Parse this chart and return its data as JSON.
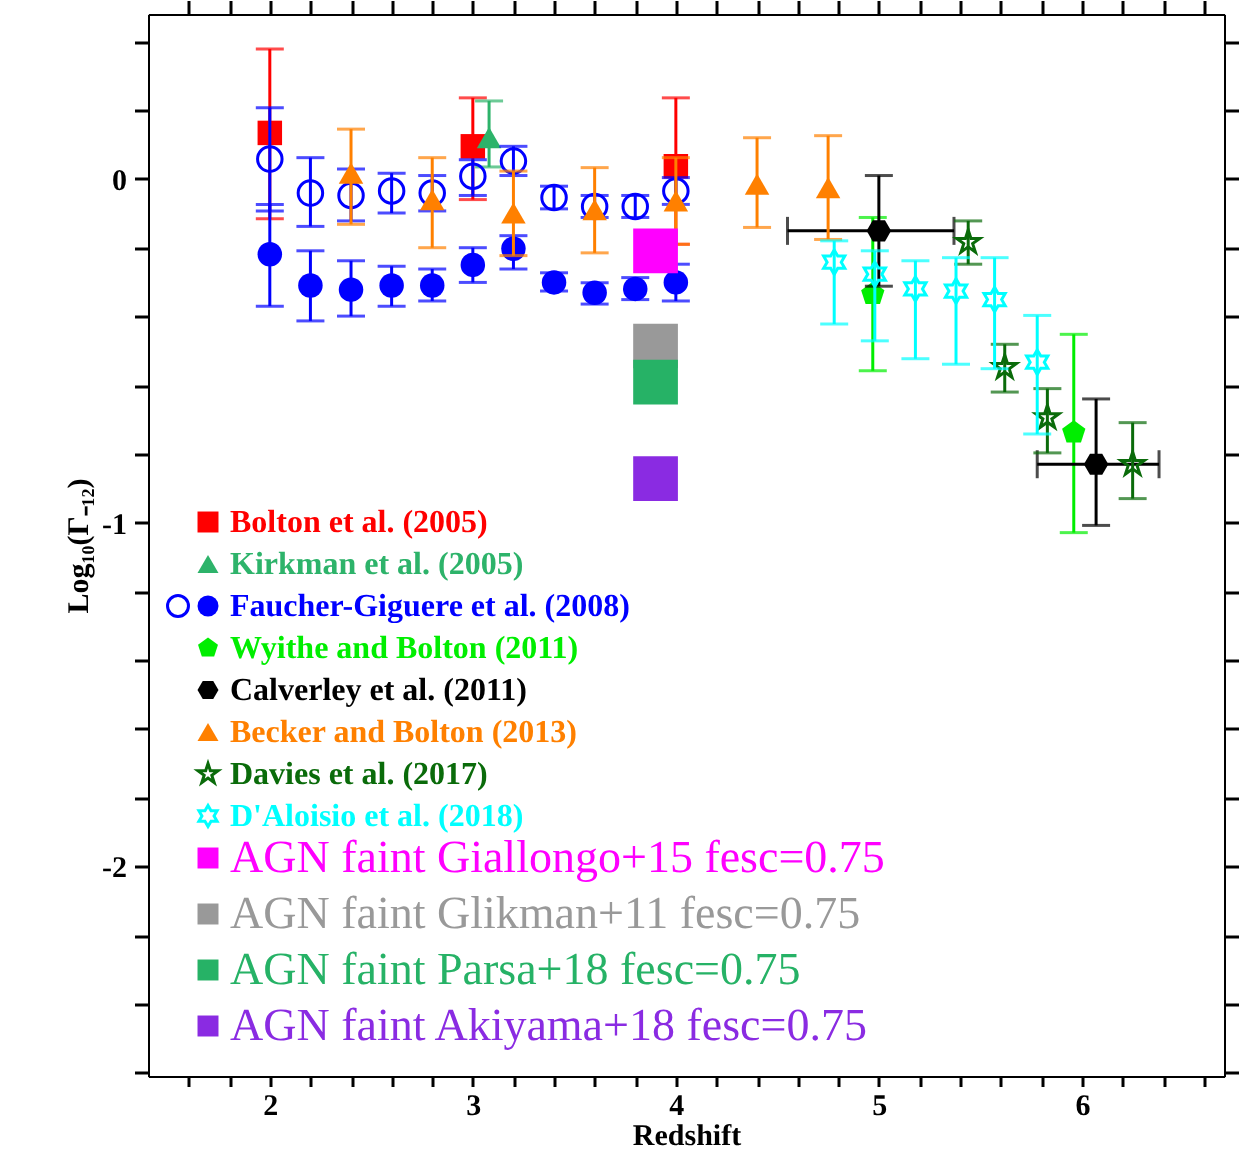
{
  "chart_data": {
    "type": "scatter",
    "xlabel": "Redshift",
    "ylabel": "Log₁₀(Γ₋₁₂)",
    "xlim": [
      1.4,
      6.7
    ],
    "ylim": [
      -2.61,
      0.48
    ],
    "grid": false,
    "legend": "bottom left",
    "xticks": [
      {
        "value": 1.6,
        "label": null
      },
      {
        "value": 1.8,
        "label": null
      },
      2,
      {
        "value": 2.2,
        "label": null
      },
      {
        "value": 2.4,
        "label": null
      },
      {
        "value": 2.6,
        "label": null
      },
      {
        "value": 2.8,
        "label": null
      },
      3,
      {
        "value": 3.2,
        "label": null
      },
      {
        "value": 3.4,
        "label": null
      },
      {
        "value": 3.6,
        "label": null
      },
      {
        "value": 3.8,
        "label": null
      },
      4,
      {
        "value": 4.2,
        "label": null
      },
      {
        "value": 4.4,
        "label": null
      },
      {
        "value": 4.6,
        "label": null
      },
      {
        "value": 4.8,
        "label": null
      },
      5,
      {
        "value": 5.2,
        "label": null
      },
      {
        "value": 5.4,
        "label": null
      },
      {
        "value": 5.6,
        "label": null
      },
      {
        "value": 5.8,
        "label": null
      },
      6,
      {
        "value": 6.2,
        "label": null
      },
      {
        "value": 6.4,
        "label": null
      },
      {
        "value": 6.6,
        "label": null
      }
    ],
    "yticks": [
      {
        "value": -2.6,
        "label": null
      },
      {
        "value": -2.4,
        "label": null
      },
      {
        "value": -2.2,
        "label": null
      },
      -2,
      {
        "value": -1.8,
        "label": null
      },
      {
        "value": -1.6,
        "label": null
      },
      {
        "value": -1.4,
        "label": null
      },
      {
        "value": -1.2,
        "label": null
      },
      -1,
      {
        "value": -0.8,
        "label": null
      },
      {
        "value": -0.6,
        "label": null
      },
      {
        "value": -0.4,
        "label": null
      },
      {
        "value": -0.2,
        "label": null
      },
      0,
      {
        "value": 0.2,
        "label": null
      },
      {
        "value": 0.4,
        "label": null
      }
    ],
    "series": [
      {
        "name": "Bolton et al. (2005)",
        "color": "#ff0000",
        "marker": "square",
        "x": [
          2.0,
          3.0,
          4.0
        ],
        "values": [
          0.134,
          0.095,
          0.037
        ],
        "errors": [
          [
            -0.116,
            0.378
          ],
          [
            -0.06,
            0.236
          ],
          [
            -0.19,
            0.236
          ]
        ]
      },
      {
        "name": "Kirkman et al. (2005)",
        "color": "#2db36a",
        "marker": "triangle",
        "x": [
          3.08
        ],
        "values": [
          0.12
        ],
        "errors": [
          [
            0.035,
            0.227
          ]
        ]
      },
      {
        "color": "#0000ff",
        "marker": "circle",
        "x": [
          2.0,
          2.2,
          2.4,
          2.6,
          2.8,
          3.0,
          3.2,
          3.4,
          3.6,
          3.8,
          4.0
        ],
        "values": [
          0.058,
          -0.041,
          -0.048,
          -0.035,
          -0.041,
          0.008,
          0.052,
          -0.054,
          -0.08,
          -0.08,
          -0.035
        ],
        "errors": [
          [
            -0.093,
            0.207
          ],
          [
            -0.138,
            0.062
          ],
          [
            -0.122,
            0.029
          ],
          [
            -0.099,
            0.017
          ],
          [
            -0.093,
            0.01
          ],
          [
            -0.048,
            0.056
          ],
          [
            0.01,
            0.095
          ],
          [
            -0.087,
            -0.021
          ],
          [
            -0.112,
            -0.048
          ],
          [
            -0.112,
            -0.048
          ],
          [
            -0.074,
            0.004
          ]
        ]
      },
      {
        "name": "Faucher-Giguere et al. (2008)",
        "color": "#0000ff",
        "marker": "circle",
        "x": [
          2.0,
          2.2,
          2.4,
          2.6,
          2.8,
          3.0,
          3.2,
          3.4,
          3.6,
          3.8,
          4.0
        ],
        "values": [
          -0.219,
          -0.31,
          -0.322,
          -0.31,
          -0.31,
          -0.25,
          -0.203,
          -0.301,
          -0.331,
          -0.32,
          -0.301
        ],
        "errors": [
          [
            -0.37,
            -0.074
          ],
          [
            -0.413,
            -0.209
          ],
          [
            -0.399,
            -0.238
          ],
          [
            -0.37,
            -0.254
          ],
          [
            -0.355,
            -0.262
          ],
          [
            -0.301,
            -0.2
          ],
          [
            -0.262,
            -0.165
          ],
          [
            -0.326,
            -0.273
          ],
          [
            -0.364,
            -0.302
          ],
          [
            -0.351,
            -0.287
          ],
          [
            -0.355,
            -0.248
          ]
        ]
      },
      {
        "name": "Wyithe and Bolton (2011)",
        "color": "#00ee00",
        "x": [
          4.97,
          5.96
        ],
        "values": [
          -0.335,
          -0.738
        ],
        "errors": [
          [
            -0.558,
            -0.112
          ],
          [
            -1.029,
            -0.452
          ]
        ]
      },
      {
        "name": "Calverley et al. (2011)",
        "color": "#000000",
        "x": [
          5.0,
          6.07
        ],
        "values": [
          -0.151,
          -0.83
        ],
        "errors": [
          [
            -0.312,
            0.01
          ],
          [
            -1.008,
            -0.64
          ]
        ],
        "xerrors": [
          [
            4.55,
            5.37
          ],
          [
            5.78,
            6.38
          ]
        ]
      },
      {
        "name": "Becker and Bolton (2013)",
        "color": "#ff8000",
        "marker": "triangle",
        "x": [
          2.4,
          2.8,
          3.2,
          3.6,
          4.0,
          4.4,
          4.75
        ],
        "values": [
          0.017,
          -0.06,
          -0.099,
          -0.089,
          -0.064,
          -0.015,
          -0.025
        ],
        "errors": [
          [
            -0.132,
            0.145
          ],
          [
            -0.2,
            0.062
          ],
          [
            -0.223,
            0.023
          ],
          [
            -0.215,
            0.033
          ],
          [
            -0.19,
            0.062
          ],
          [
            -0.141,
            0.12
          ],
          [
            -0.176,
            0.126
          ]
        ]
      },
      {
        "name": "Davies et al. (2017)",
        "color": "#0a6b0a",
        "marker": "star",
        "x": [
          5.44,
          5.62,
          5.83,
          6.25
        ],
        "values": [
          -0.184,
          -0.548,
          -0.694,
          -0.83
        ],
        "errors": [
          [
            -0.248,
            -0.122
          ],
          [
            -0.62,
            -0.481
          ],
          [
            -0.797,
            -0.61
          ],
          [
            -0.93,
            -0.709
          ]
        ]
      },
      {
        "name": "D'Aloisio et al. (2018)",
        "color": "#00ffff",
        "x": [
          4.78,
          4.98,
          5.18,
          5.38,
          5.57,
          5.78
        ],
        "values": [
          -0.242,
          -0.277,
          -0.32,
          -0.326,
          -0.351,
          -0.533
        ],
        "errors": [
          [
            -0.422,
            -0.18
          ],
          [
            -0.471,
            -0.209
          ],
          [
            -0.523,
            -0.238
          ],
          [
            -0.539,
            -0.229
          ],
          [
            -0.552,
            -0.229
          ],
          [
            -0.742,
            -0.397
          ]
        ]
      },
      {
        "name": "AGN faint Giallongo+15 fesc=0.75",
        "color": "#ff00ff",
        "marker": "square",
        "x": [
          3.9
        ],
        "values": [
          -0.209
        ]
      },
      {
        "name": "AGN faint Glikman+11 fesc=0.75",
        "color": "#999999",
        "marker": "square",
        "x": [
          3.9
        ],
        "values": [
          -0.486
        ]
      },
      {
        "name": "AGN faint Parsa+18 fesc=0.75",
        "color": "#26b266",
        "marker": "square",
        "x": [
          3.9
        ],
        "values": [
          -0.591
        ]
      },
      {
        "name": "AGN faint Akiyama+18 fesc=0.75",
        "color": "#8a2be2",
        "marker": "square",
        "x": [
          3.9
        ],
        "values": [
          -0.872
        ]
      }
    ]
  }
}
